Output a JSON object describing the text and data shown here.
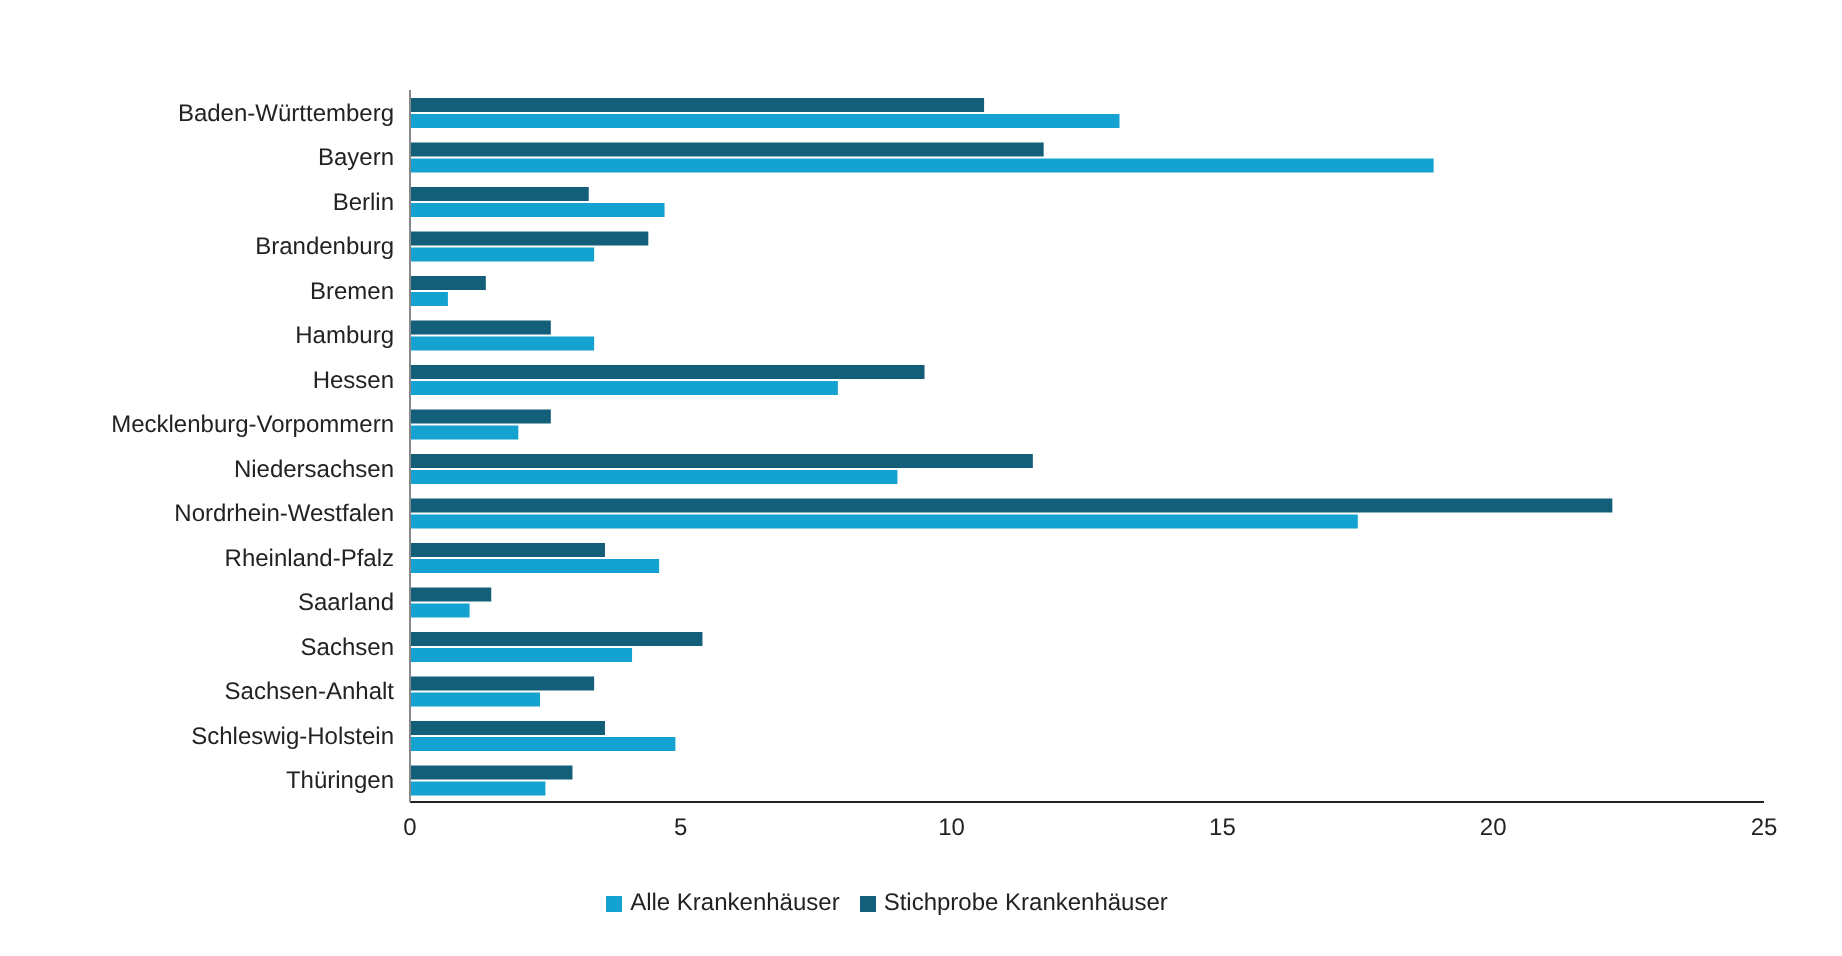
{
  "chart_data": {
    "type": "bar",
    "orientation": "horizontal",
    "categories": [
      "Baden-Württemberg",
      "Bayern",
      "Berlin",
      "Brandenburg",
      "Bremen",
      "Hamburg",
      "Hessen",
      "Mecklenburg-Vorpommern",
      "Niedersachsen",
      "Nordrhein-Westfalen",
      "Rheinland-Pfalz",
      "Saarland",
      "Sachsen",
      "Sachsen-Anhalt",
      "Schleswig-Holstein",
      "Thüringen"
    ],
    "series": [
      {
        "name": "Stichprobe Krankenhäuser",
        "color": "#135e78",
        "values": [
          10.6,
          11.7,
          3.3,
          4.4,
          1.4,
          2.6,
          9.5,
          2.6,
          11.5,
          22.2,
          3.6,
          1.5,
          5.4,
          3.4,
          3.6,
          3.0
        ]
      },
      {
        "name": "Alle Krankenhäuser",
        "color": "#14a2d0",
        "values": [
          13.1,
          18.9,
          4.7,
          3.4,
          0.7,
          3.4,
          7.9,
          2.0,
          9.0,
          17.5,
          4.6,
          1.1,
          4.1,
          2.4,
          4.9,
          2.5
        ]
      }
    ],
    "xlim": [
      0,
      25
    ],
    "xticks": [
      0,
      5,
      10,
      15,
      20,
      25
    ],
    "grid": false,
    "legend": "bottom"
  }
}
